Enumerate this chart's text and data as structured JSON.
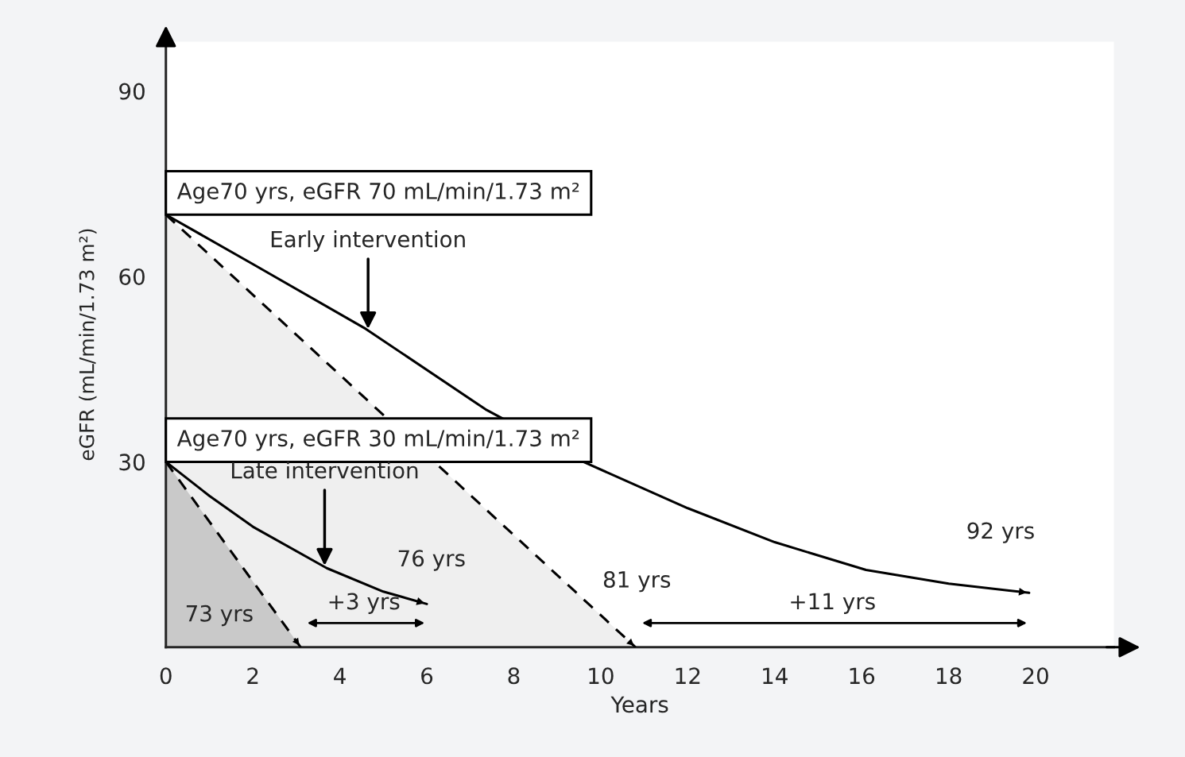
{
  "chart_data": {
    "type": "line",
    "xlabel": "Years",
    "ylabel": "eGFR (mL/min/1.73 m²)",
    "xlim": [
      0,
      21.8
    ],
    "ylim": [
      0,
      98
    ],
    "xticks": [
      0,
      2,
      4,
      6,
      8,
      10,
      12,
      14,
      16,
      18,
      20
    ],
    "yticks": [
      30,
      60,
      90
    ],
    "series": [
      {
        "type": "area",
        "color": "#efefef",
        "line_style": "dashed",
        "x": [
          0,
          10.8
        ],
        "values": [
          70,
          0
        ]
      },
      {
        "type": "area",
        "color": "#c9c9c9",
        "line_style": "dashed",
        "x": [
          0,
          3.1
        ],
        "values": [
          30,
          0
        ]
      },
      {
        "color": "#000000",
        "line_style": "solid",
        "x": [
          0,
          2,
          4.6,
          7.35,
          9.6,
          12,
          14,
          16.1,
          18,
          19.85
        ],
        "values": [
          70,
          62,
          51.5,
          38.5,
          30,
          22.5,
          17,
          12.5,
          10.3,
          8.8
        ]
      },
      {
        "color": "#000000",
        "line_style": "solid",
        "x": [
          0,
          1,
          2,
          3.7,
          5,
          6
        ],
        "values": [
          30,
          24.5,
          19.5,
          12.8,
          9,
          7
        ]
      }
    ],
    "annotations": [
      {
        "text": "Age70 yrs, eGFR 70 mL/min/1.73 m²",
        "x": 0,
        "y": 70
      },
      {
        "text": "Age70 yrs, eGFR 30 mL/min/1.73 m²",
        "x": 0,
        "y": 30
      },
      {
        "text": "Early intervention",
        "x": 4.65,
        "y": 51.5
      },
      {
        "text": "Late intervention",
        "x": 3.65,
        "y": 13.2
      },
      "73 yrs",
      {
        "text": "76 yrs",
        "x": 6,
        "y": 7
      },
      {
        "text": "81 yrs",
        "x": 10.8,
        "y": 0
      },
      {
        "text": "92 yrs",
        "x": 19.85,
        "y": 8.8
      },
      "+3 yrs",
      "+11 yrs"
    ]
  }
}
